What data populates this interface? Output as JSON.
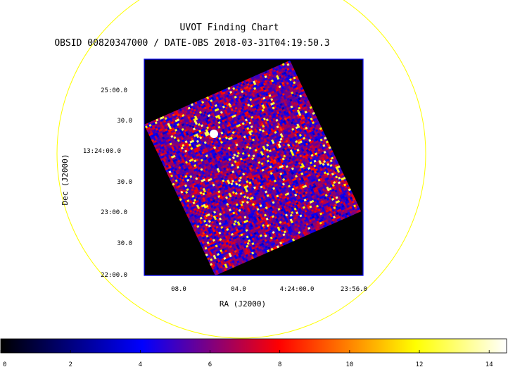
{
  "chart_data": {
    "type": "heatmap",
    "title": "UVOT Finding Chart",
    "subtitle": "OBSID 00820347000 / DATE-OBS 2018-03-31T04:19:50.3",
    "xlabel": "RA (J2000)",
    "ylabel": "Dec (J2000)",
    "x_ticks": [
      "08.0",
      "04.0",
      "4:24:00.0",
      "23:56.0"
    ],
    "y_ticks": [
      "25:00.0",
      "30.0",
      "13:24:00.0",
      "30.0",
      "23:00.0",
      "30.0",
      "22:00.0"
    ],
    "colorbar": {
      "ticks": [
        "0",
        "2",
        "4",
        "6",
        "8",
        "10",
        "12",
        "14"
      ],
      "range": [
        0,
        14.5
      ],
      "colors": [
        "#000000",
        "#0000ff",
        "#ff0000",
        "#ffff00",
        "#ffffff"
      ]
    },
    "colors": {
      "field_circle": "#ffff00",
      "frame": "#0000ff",
      "image_background": "#000000"
    },
    "bright_source": {
      "value": 14.5
    }
  }
}
